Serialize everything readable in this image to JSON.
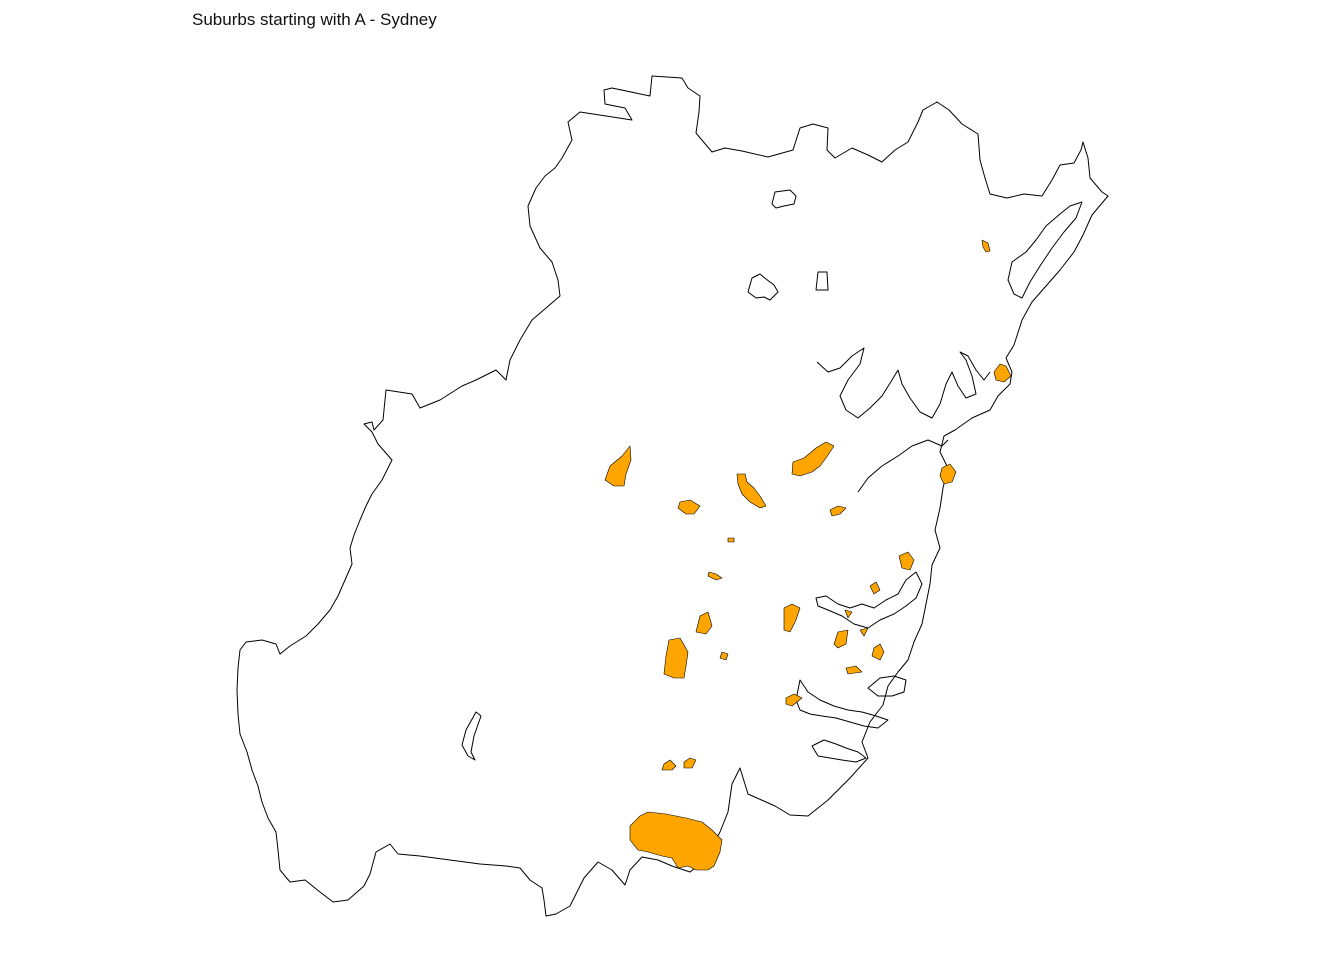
{
  "map": {
    "title": "Suburbs starting with A - Sydney",
    "highlight_color": "#FFA500",
    "outline_color": "#000000",
    "background_color": "#FFFFFF",
    "highlighted_region_count": 28
  }
}
